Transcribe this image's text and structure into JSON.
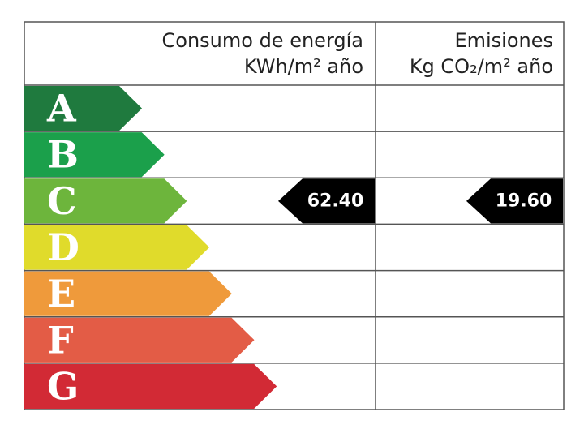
{
  "header": {
    "energy": [
      "Consumo de energía",
      "KWh/m² año"
    ],
    "emissions": [
      "Emisiones",
      "Kg CO₂/m² año"
    ]
  },
  "rows": [
    {
      "letter": "A",
      "color": "#1f7a3e"
    },
    {
      "letter": "B",
      "color": "#1ba04b"
    },
    {
      "letter": "C",
      "color": "#6db53c",
      "energy": "62.40",
      "emissions": "19.60"
    },
    {
      "letter": "D",
      "color": "#e0db2b"
    },
    {
      "letter": "E",
      "color": "#ef9a3b"
    },
    {
      "letter": "F",
      "color": "#e35c46"
    },
    {
      "letter": "G",
      "color": "#d22a35"
    }
  ]
}
